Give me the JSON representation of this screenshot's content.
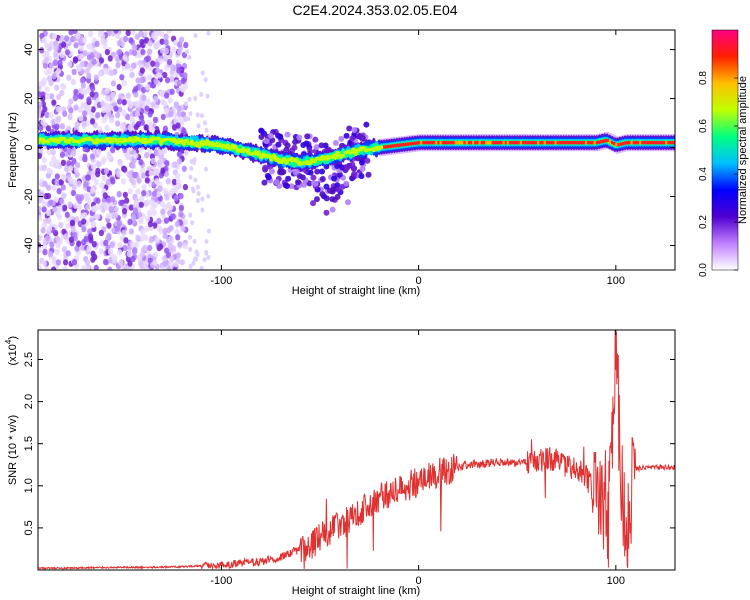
{
  "title": "C2E4.2024.353.02.05.E04",
  "chart_data": [
    {
      "type": "heatmap",
      "name": "spectrogram",
      "xlabel": "Height of straight line (km)",
      "ylabel": "Frequency (Hz)",
      "xlim": [
        -193,
        130
      ],
      "ylim": [
        -50,
        48
      ],
      "x_ticks": [
        -100,
        0,
        100
      ],
      "x_tick_labels": [
        "-100",
        "0",
        "100"
      ],
      "y_ticks": [
        -40,
        -20,
        0,
        20,
        40
      ],
      "y_tick_labels": [
        "-40",
        "-20",
        "0",
        "20",
        "40"
      ],
      "colorbar": {
        "label": "Normalized spectral amplitude",
        "range": [
          0,
          1
        ],
        "ticks": [
          0.0,
          0.2,
          0.4,
          0.6,
          0.8
        ],
        "tick_labels": [
          "0.0",
          "0.2",
          "0.4",
          "0.6",
          "0.8"
        ],
        "colors": [
          "#ffffff",
          "#c080ff",
          "#5000d0",
          "#0000ff",
          "#00c0ff",
          "#00ff80",
          "#c0ff00",
          "#ffc000",
          "#ff2000",
          "#ff0080"
        ]
      },
      "ridge": {
        "x": [
          -193,
          -170,
          -150,
          -130,
          -115,
          -100,
          -90,
          -80,
          -70,
          -60,
          -50,
          -40,
          -30,
          -20,
          -10,
          0,
          20,
          40,
          60,
          80,
          90,
          95,
          100,
          105,
          110,
          120,
          130
        ],
        "y": [
          3,
          3,
          3,
          3,
          2,
          1,
          -1,
          -3,
          -5,
          -6,
          -5,
          -3,
          -1,
          0,
          1,
          2,
          2,
          2,
          2,
          2,
          2,
          3,
          1,
          2,
          2,
          2,
          2
        ]
      }
    },
    {
      "type": "line",
      "name": "snr",
      "xlabel": "Height of straight line (km)",
      "ylabel": "SNR (10 * v/v)",
      "multiplier_label": "(x10",
      "multiplier_exp": "4",
      "xlim": [
        -193,
        130
      ],
      "ylim": [
        0,
        2.85
      ],
      "x_ticks": [
        -100,
        0,
        100
      ],
      "x_tick_labels": [
        "-100",
        "0",
        "100"
      ],
      "y_ticks": [
        0.5,
        1.0,
        1.5,
        2.0,
        2.5
      ],
      "y_tick_labels": [
        "0.5",
        "1.0",
        "1.5",
        "2.0",
        "2.5"
      ],
      "color": "#e03030",
      "x": [
        -193,
        -180,
        -160,
        -140,
        -120,
        -110,
        -100,
        -90,
        -80,
        -70,
        -60,
        -55,
        -50,
        -45,
        -40,
        -35,
        -30,
        -25,
        -20,
        -15,
        -10,
        -5,
        0,
        5,
        10,
        15,
        20,
        25,
        30,
        35,
        40,
        45,
        50,
        55,
        60,
        65,
        70,
        75,
        80,
        85,
        90,
        95,
        98,
        100,
        103,
        106,
        108,
        110,
        115,
        120,
        130
      ],
      "y": [
        0.02,
        0.02,
        0.03,
        0.03,
        0.04,
        0.05,
        0.06,
        0.08,
        0.1,
        0.15,
        0.25,
        0.3,
        0.38,
        0.45,
        0.55,
        0.62,
        0.7,
        0.78,
        0.85,
        0.9,
        0.95,
        1.0,
        1.05,
        1.1,
        1.15,
        1.18,
        1.22,
        1.25,
        1.26,
        1.27,
        1.28,
        1.28,
        1.27,
        1.28,
        1.3,
        1.32,
        1.3,
        1.25,
        1.2,
        1.1,
        0.9,
        0.7,
        1.6,
        2.8,
        0.9,
        0.4,
        1.3,
        1.2,
        1.22,
        1.22,
        1.22
      ]
    }
  ]
}
